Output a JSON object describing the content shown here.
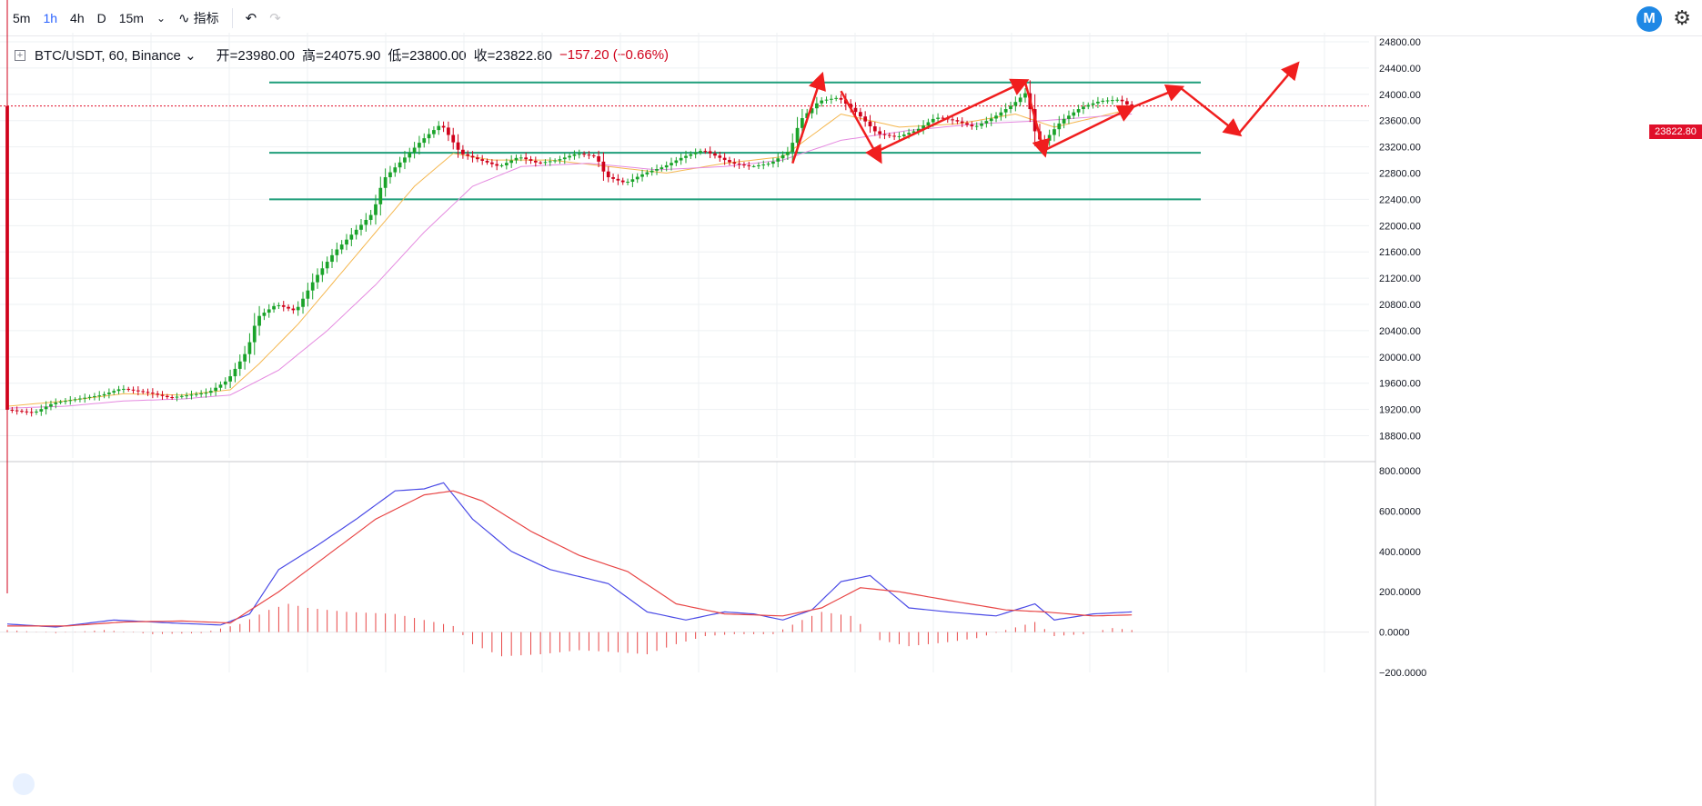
{
  "toolbar": {
    "intervals": [
      "5m",
      "1h",
      "4h",
      "D",
      "15m"
    ],
    "active_interval": "1h",
    "indicators_label": "指标"
  },
  "header": {
    "symbol": "BTC/USDT, 60, Binance",
    "open": "开=23980.00",
    "high": "高=24075.90",
    "low": "低=23800.00",
    "close": "收=23822.80",
    "change": "−157.20 (−0.66%)"
  },
  "colors": {
    "up": "#1aa32a",
    "down": "#d0021b",
    "channel": "#1f9e7a",
    "arrow": "#f01e1e",
    "macd": "#4a4ae6",
    "signal": "#e84545",
    "ma_short": "#f5b74f",
    "ma_long": "#e58ae0"
  },
  "chart_data": {
    "type": "candlestick",
    "symbol": "BTC/USDT",
    "interval": "60",
    "exchange": "Binance",
    "last_price": "23822.80",
    "price_axis": {
      "min": 18600,
      "max": 24800,
      "ticks": [
        "24800.00",
        "24400.00",
        "24000.00",
        "23600.00",
        "23200.00",
        "22800.00",
        "22400.00",
        "22000.00",
        "21600.00",
        "21200.00",
        "20800.00",
        "20400.00",
        "20000.00",
        "19600.00",
        "19200.00",
        "18800.00"
      ]
    },
    "macd_axis": {
      "min": -200,
      "max": 800,
      "ticks": [
        "800.0000",
        "600.0000",
        "400.0000",
        "200.0000",
        "0.0000",
        "−200.0000"
      ]
    },
    "channel_levels": [
      24180,
      23110,
      22400
    ],
    "price_path": [
      [
        0,
        19200
      ],
      [
        6,
        19150
      ],
      [
        10,
        19300
      ],
      [
        14,
        19350
      ],
      [
        20,
        19420
      ],
      [
        24,
        19520
      ],
      [
        30,
        19450
      ],
      [
        34,
        19380
      ],
      [
        38,
        19420
      ],
      [
        42,
        19460
      ],
      [
        46,
        19650
      ],
      [
        50,
        20100
      ],
      [
        52,
        20600
      ],
      [
        56,
        20800
      ],
      [
        60,
        20700
      ],
      [
        64,
        21200
      ],
      [
        68,
        21600
      ],
      [
        72,
        21900
      ],
      [
        76,
        22200
      ],
      [
        78,
        22700
      ],
      [
        82,
        23000
      ],
      [
        86,
        23300
      ],
      [
        90,
        23550
      ],
      [
        94,
        23100
      ],
      [
        98,
        23000
      ],
      [
        102,
        22900
      ],
      [
        106,
        23050
      ],
      [
        110,
        22950
      ],
      [
        114,
        23000
      ],
      [
        118,
        23100
      ],
      [
        122,
        23050
      ],
      [
        124,
        22750
      ],
      [
        128,
        22650
      ],
      [
        132,
        22800
      ],
      [
        136,
        22900
      ],
      [
        140,
        23050
      ],
      [
        144,
        23150
      ],
      [
        150,
        22950
      ],
      [
        154,
        22900
      ],
      [
        158,
        22950
      ],
      [
        162,
        23150
      ],
      [
        164,
        23600
      ],
      [
        168,
        23900
      ],
      [
        172,
        23950
      ],
      [
        176,
        23700
      ],
      [
        180,
        23400
      ],
      [
        184,
        23350
      ],
      [
        188,
        23450
      ],
      [
        192,
        23650
      ],
      [
        196,
        23600
      ],
      [
        200,
        23500
      ],
      [
        204,
        23650
      ],
      [
        208,
        23850
      ],
      [
        211,
        24050
      ],
      [
        212,
        23500
      ],
      [
        214,
        23250
      ],
      [
        218,
        23600
      ],
      [
        222,
        23800
      ],
      [
        226,
        23900
      ],
      [
        230,
        23920
      ],
      [
        232,
        23822
      ]
    ],
    "ma_short": [
      [
        0,
        19250
      ],
      [
        12,
        19330
      ],
      [
        24,
        19440
      ],
      [
        36,
        19420
      ],
      [
        46,
        19500
      ],
      [
        52,
        19900
      ],
      [
        60,
        20500
      ],
      [
        68,
        21200
      ],
      [
        76,
        21900
      ],
      [
        84,
        22600
      ],
      [
        92,
        23100
      ],
      [
        100,
        23000
      ],
      [
        112,
        23000
      ],
      [
        124,
        22900
      ],
      [
        136,
        22800
      ],
      [
        148,
        22950
      ],
      [
        160,
        23050
      ],
      [
        172,
        23700
      ],
      [
        184,
        23500
      ],
      [
        196,
        23550
      ],
      [
        208,
        23700
      ],
      [
        216,
        23500
      ],
      [
        232,
        23780
      ]
    ],
    "ma_long": [
      [
        0,
        19220
      ],
      [
        12,
        19250
      ],
      [
        24,
        19330
      ],
      [
        36,
        19360
      ],
      [
        46,
        19420
      ],
      [
        56,
        19800
      ],
      [
        66,
        20400
      ],
      [
        76,
        21100
      ],
      [
        86,
        21900
      ],
      [
        96,
        22600
      ],
      [
        106,
        22900
      ],
      [
        120,
        22950
      ],
      [
        134,
        22850
      ],
      [
        148,
        22900
      ],
      [
        160,
        23000
      ],
      [
        172,
        23300
      ],
      [
        186,
        23450
      ],
      [
        200,
        23550
      ],
      [
        214,
        23600
      ],
      [
        232,
        23700
      ]
    ],
    "macd_line": [
      [
        0,
        40
      ],
      [
        10,
        25
      ],
      [
        22,
        60
      ],
      [
        34,
        45
      ],
      [
        44,
        35
      ],
      [
        50,
        90
      ],
      [
        56,
        310
      ],
      [
        64,
        430
      ],
      [
        72,
        560
      ],
      [
        80,
        700
      ],
      [
        86,
        710
      ],
      [
        90,
        740
      ],
      [
        96,
        560
      ],
      [
        104,
        400
      ],
      [
        112,
        310
      ],
      [
        124,
        240
      ],
      [
        132,
        100
      ],
      [
        140,
        60
      ],
      [
        148,
        100
      ],
      [
        154,
        90
      ],
      [
        160,
        60
      ],
      [
        166,
        110
      ],
      [
        172,
        250
      ],
      [
        178,
        280
      ],
      [
        186,
        120
      ],
      [
        194,
        100
      ],
      [
        204,
        80
      ],
      [
        212,
        140
      ],
      [
        216,
        60
      ],
      [
        224,
        90
      ],
      [
        232,
        100
      ]
    ],
    "signal_line": [
      [
        0,
        30
      ],
      [
        12,
        30
      ],
      [
        24,
        50
      ],
      [
        36,
        55
      ],
      [
        46,
        45
      ],
      [
        56,
        200
      ],
      [
        66,
        380
      ],
      [
        76,
        560
      ],
      [
        86,
        680
      ],
      [
        92,
        700
      ],
      [
        98,
        650
      ],
      [
        108,
        500
      ],
      [
        118,
        380
      ],
      [
        128,
        300
      ],
      [
        138,
        140
      ],
      [
        148,
        90
      ],
      [
        160,
        80
      ],
      [
        168,
        120
      ],
      [
        176,
        220
      ],
      [
        184,
        200
      ],
      [
        196,
        150
      ],
      [
        206,
        110
      ],
      [
        214,
        100
      ],
      [
        224,
        80
      ],
      [
        232,
        85
      ]
    ],
    "macd_hist": [
      [
        0,
        10
      ],
      [
        10,
        -5
      ],
      [
        20,
        10
      ],
      [
        30,
        -10
      ],
      [
        40,
        -5
      ],
      [
        48,
        40
      ],
      [
        54,
        110
      ],
      [
        58,
        140
      ],
      [
        62,
        120
      ],
      [
        70,
        100
      ],
      [
        80,
        90
      ],
      [
        86,
        60
      ],
      [
        92,
        30
      ],
      [
        96,
        -60
      ],
      [
        102,
        -120
      ],
      [
        110,
        -110
      ],
      [
        118,
        -90
      ],
      [
        126,
        -100
      ],
      [
        132,
        -110
      ],
      [
        138,
        -60
      ],
      [
        144,
        -20
      ],
      [
        150,
        -10
      ],
      [
        158,
        -10
      ],
      [
        164,
        60
      ],
      [
        168,
        100
      ],
      [
        174,
        80
      ],
      [
        180,
        -40
      ],
      [
        186,
        -70
      ],
      [
        194,
        -50
      ],
      [
        200,
        -30
      ],
      [
        206,
        10
      ],
      [
        212,
        50
      ],
      [
        216,
        -20
      ],
      [
        222,
        -10
      ],
      [
        228,
        20
      ],
      [
        232,
        10
      ]
    ],
    "projection_arrows": [
      [
        [
          162,
          22950
        ],
        [
          168,
          24280
        ]
      ],
      [
        [
          172,
          24050
        ],
        [
          180,
          23000
        ]
      ],
      [
        [
          180,
          23150
        ],
        [
          210,
          24200
        ]
      ],
      [
        [
          210,
          24180
        ],
        [
          214,
          23100
        ]
      ],
      [
        [
          214,
          23150
        ],
        [
          232,
          23800
        ]
      ],
      [
        [
          232,
          23800
        ],
        [
          242,
          24100
        ]
      ],
      [
        [
          242,
          24100
        ],
        [
          254,
          23400
        ]
      ],
      [
        [
          254,
          23400
        ],
        [
          266,
          24450
        ]
      ]
    ]
  }
}
